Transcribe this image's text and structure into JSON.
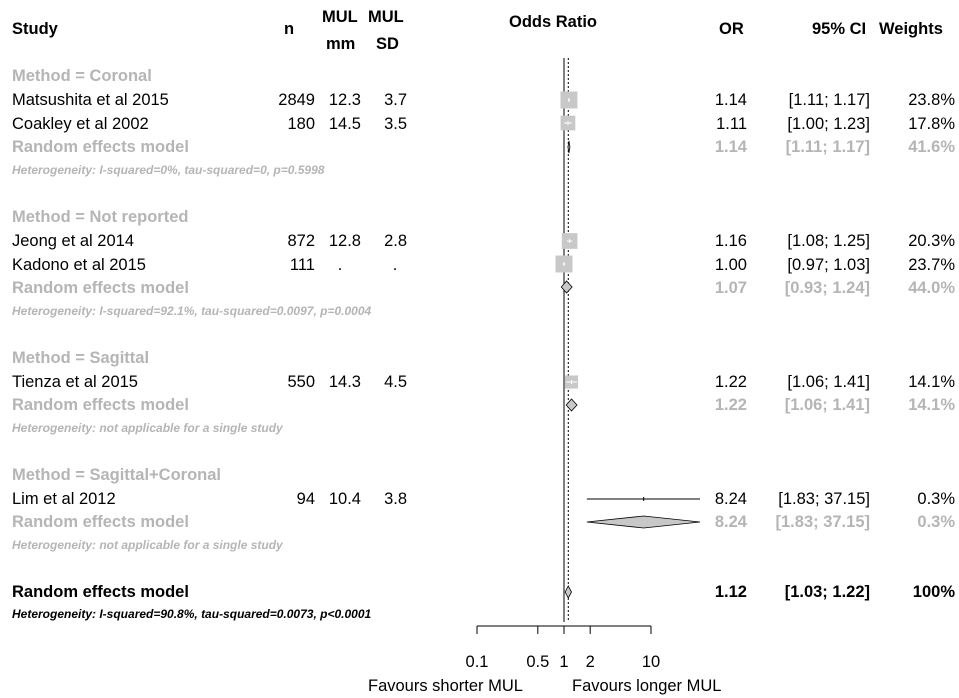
{
  "headers": {
    "study": "Study",
    "n": "n",
    "mul_mm_1": "MUL",
    "mul_mm_2": "mm",
    "mul_sd_1": "MUL",
    "mul_sd_2": "SD",
    "odds_ratio": "Odds Ratio",
    "or": "OR",
    "ci": "95% CI",
    "weights": "Weights"
  },
  "groups": [
    {
      "label": "Method = Coronal",
      "studies": [
        {
          "name": "Matsushita et al 2015",
          "n": "2849",
          "mm": "12.3",
          "sd": "3.7",
          "or_text": "1.14",
          "ci_text": "[1.11;  1.17]",
          "w_text": "23.8%"
        },
        {
          "name": "Coakley et al 2002",
          "n": "180",
          "mm": "14.5",
          "sd": "3.5",
          "or_text": "1.11",
          "ci_text": "[1.00;  1.23]",
          "w_text": "17.8%"
        }
      ],
      "model": {
        "label": "Random effects model",
        "or_text": "1.14",
        "ci_text": "[1.11;  1.17]",
        "w_text": "41.6%"
      },
      "heterogeneity": "Heterogeneity: I-squared=0%, tau-squared=0, p=0.5998"
    },
    {
      "label": "Method = Not reported",
      "studies": [
        {
          "name": "Jeong et al 2014",
          "n": "872",
          "mm": "12.8",
          "sd": "2.8",
          "or_text": "1.16",
          "ci_text": "[1.08;  1.25]",
          "w_text": "20.3%"
        },
        {
          "name": "Kadono et al 2015",
          "n": "111",
          "mm": ".",
          "sd": ".",
          "or_text": "1.00",
          "ci_text": "[0.97;  1.03]",
          "w_text": "23.7%"
        }
      ],
      "model": {
        "label": "Random effects model",
        "or_text": "1.07",
        "ci_text": "[0.93;  1.24]",
        "w_text": "44.0%"
      },
      "heterogeneity": "Heterogeneity: I-squared=92.1%, tau-squared=0.0097, p=0.0004"
    },
    {
      "label": "Method = Sagittal",
      "studies": [
        {
          "name": "Tienza et al 2015",
          "n": "550",
          "mm": "14.3",
          "sd": "4.5",
          "or_text": "1.22",
          "ci_text": "[1.06;  1.41]",
          "w_text": "14.1%"
        }
      ],
      "model": {
        "label": "Random effects model",
        "or_text": "1.22",
        "ci_text": "[1.06;  1.41]",
        "w_text": "14.1%"
      },
      "heterogeneity": "Heterogeneity: not applicable for a single study"
    },
    {
      "label": "Method = Sagittal+Coronal",
      "studies": [
        {
          "name": "Lim et al 2012",
          "n": "94",
          "mm": "10.4",
          "sd": "3.8",
          "or_text": "8.24",
          "ci_text": "[1.83; 37.15]",
          "w_text": "0.3%"
        }
      ],
      "model": {
        "label": "Random effects model",
        "or_text": "8.24",
        "ci_text": "[1.83; 37.15]",
        "w_text": "0.3%"
      },
      "heterogeneity": "Heterogeneity: not applicable for a single study"
    }
  ],
  "overall": {
    "label": "Random effects model",
    "or_text": "1.12",
    "ci_text": "[1.03;  1.22]",
    "w_text": "100%",
    "heterogeneity": "Heterogeneity: I-squared=90.8%, tau-squared=0.0073, p<0.0001"
  },
  "footer": {
    "left_label": "Favours shorter MUL",
    "right_label": "Favours longer MUL"
  },
  "chart_data": {
    "type": "forest",
    "scale": "log",
    "xlim": [
      0.1,
      10
    ],
    "ticks": [
      0.1,
      0.5,
      1,
      2,
      10
    ],
    "tick_labels": [
      "0.1",
      "0.5",
      "1",
      "2",
      "10"
    ],
    "null_line": 1,
    "pooled_line": 1.12,
    "studies": [
      {
        "name": "Matsushita et al 2015",
        "or": 1.14,
        "lo": 1.11,
        "hi": 1.17,
        "weight": 23.8
      },
      {
        "name": "Coakley et al 2002",
        "or": 1.11,
        "lo": 1.0,
        "hi": 1.23,
        "weight": 17.8
      },
      {
        "name": "Jeong et al 2014",
        "or": 1.16,
        "lo": 1.08,
        "hi": 1.25,
        "weight": 20.3
      },
      {
        "name": "Kadono et al 2015",
        "or": 1.0,
        "lo": 0.97,
        "hi": 1.03,
        "weight": 23.7
      },
      {
        "name": "Tienza et al 2015",
        "or": 1.22,
        "lo": 1.06,
        "hi": 1.41,
        "weight": 14.1
      },
      {
        "name": "Lim et al 2012",
        "or": 8.24,
        "lo": 1.83,
        "hi": 37.15,
        "weight": 0.3
      }
    ],
    "subgroup_models": [
      {
        "group": "Method = Coronal",
        "or": 1.14,
        "lo": 1.11,
        "hi": 1.17
      },
      {
        "group": "Method = Not reported",
        "or": 1.07,
        "lo": 0.93,
        "hi": 1.24
      },
      {
        "group": "Method = Sagittal",
        "or": 1.22,
        "lo": 1.06,
        "hi": 1.41
      },
      {
        "group": "Method = Sagittal+Coronal",
        "or": 8.24,
        "lo": 1.83,
        "hi": 37.15
      }
    ],
    "overall_model": {
      "or": 1.12,
      "lo": 1.03,
      "hi": 1.22
    },
    "colors": {
      "study_box": "#c8c8c8",
      "subgroup_text": "#b5b5b5",
      "diamond_fill": "#c8c8c8"
    }
  }
}
